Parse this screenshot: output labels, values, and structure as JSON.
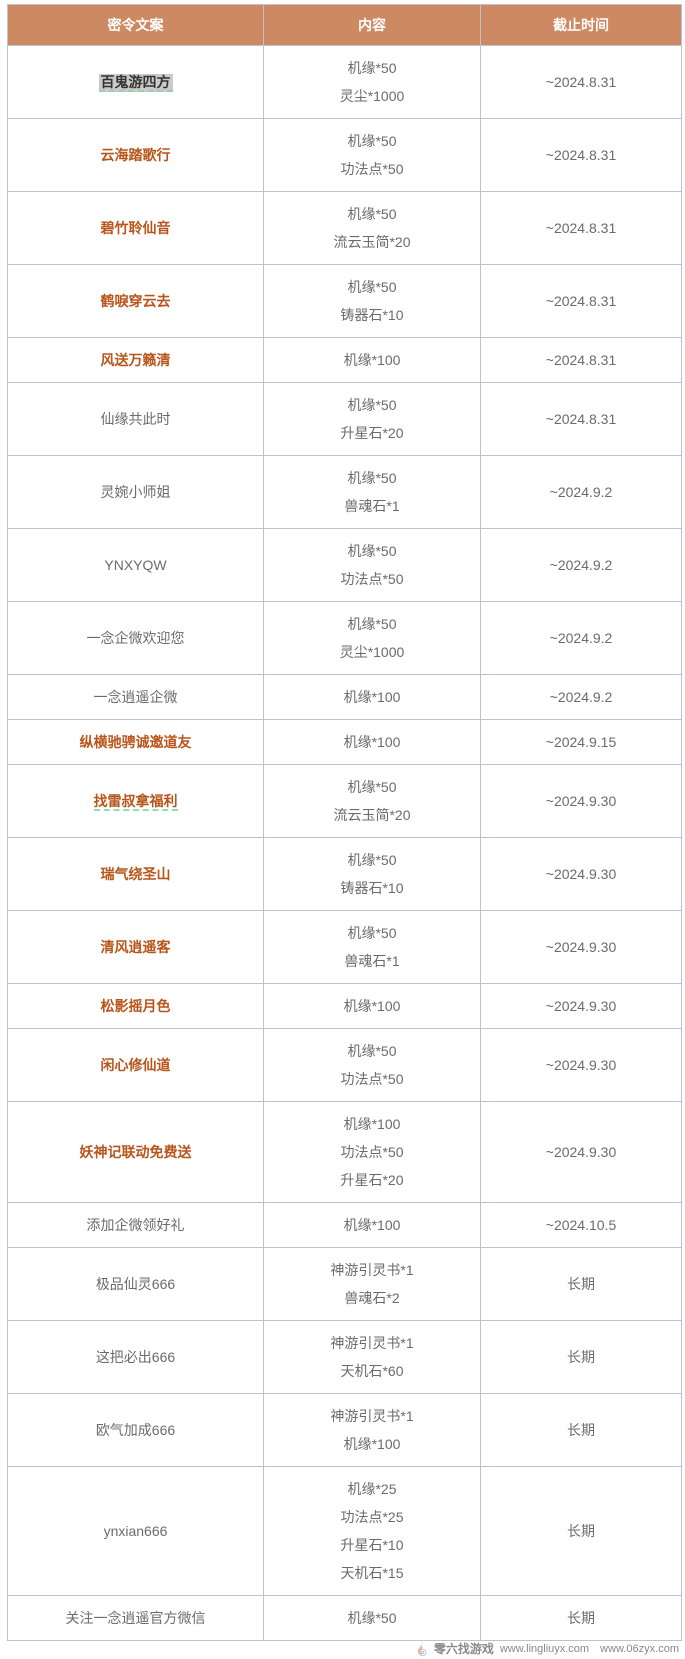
{
  "header": {
    "col1": "密令文案",
    "col2": "内容",
    "col3": "截止时间"
  },
  "rows": [
    {
      "code": "百鬼游四方",
      "style": "highlight",
      "rewards": [
        "机缘*50",
        "灵尘*1000"
      ],
      "deadline": "~2024.8.31"
    },
    {
      "code": "云海踏歌行",
      "style": "bold",
      "rewards": [
        "机缘*50",
        "功法点*50"
      ],
      "deadline": "~2024.8.31"
    },
    {
      "code": "碧竹聆仙音",
      "style": "bold",
      "rewards": [
        "机缘*50",
        "流云玉简*20"
      ],
      "deadline": "~2024.8.31"
    },
    {
      "code": "鹤唳穿云去",
      "style": "bold",
      "rewards": [
        "机缘*50",
        "铸器石*10"
      ],
      "deadline": "~2024.8.31"
    },
    {
      "code": "风送万籁清",
      "style": "bold",
      "rewards": [
        "机缘*100"
      ],
      "deadline": "~2024.8.31"
    },
    {
      "code": "仙缘共此时",
      "style": "normal",
      "rewards": [
        "机缘*50",
        "升星石*20"
      ],
      "deadline": "~2024.8.31"
    },
    {
      "code": "灵婉小师姐",
      "style": "normal",
      "rewards": [
        "机缘*50",
        "兽魂石*1"
      ],
      "deadline": "~2024.9.2"
    },
    {
      "code": "YNXYQW",
      "style": "normal",
      "rewards": [
        "机缘*50",
        "功法点*50"
      ],
      "deadline": "~2024.9.2"
    },
    {
      "code": "一念企微欢迎您",
      "style": "normal",
      "rewards": [
        "机缘*50",
        "灵尘*1000"
      ],
      "deadline": "~2024.9.2"
    },
    {
      "code": "一念逍遥企微",
      "style": "normal",
      "rewards": [
        "机缘*100"
      ],
      "deadline": "~2024.9.2"
    },
    {
      "code": "纵横驰骋诚邀道友",
      "style": "bold",
      "rewards": [
        "机缘*100"
      ],
      "deadline": "~2024.9.15"
    },
    {
      "code": "找雷叔拿福利",
      "style": "bold-underline",
      "rewards": [
        "机缘*50",
        "流云玉简*20"
      ],
      "deadline": "~2024.9.30"
    },
    {
      "code": "瑞气绕圣山",
      "style": "bold",
      "rewards": [
        "机缘*50",
        "铸器石*10"
      ],
      "deadline": "~2024.9.30"
    },
    {
      "code": "清风逍遥客",
      "style": "bold",
      "rewards": [
        "机缘*50",
        "兽魂石*1"
      ],
      "deadline": "~2024.9.30"
    },
    {
      "code": "松影摇月色",
      "style": "bold",
      "rewards": [
        "机缘*100"
      ],
      "deadline": "~2024.9.30"
    },
    {
      "code": "闲心修仙道",
      "style": "bold",
      "rewards": [
        "机缘*50",
        "功法点*50"
      ],
      "deadline": "~2024.9.30"
    },
    {
      "code": "妖神记联动免费送",
      "style": "bold",
      "rewards": [
        "机缘*100",
        "功法点*50",
        "升星石*20"
      ],
      "deadline": "~2024.9.30"
    },
    {
      "code": "添加企微领好礼",
      "style": "normal",
      "rewards": [
        "机缘*100"
      ],
      "deadline": "~2024.10.5"
    },
    {
      "code": "极品仙灵666",
      "style": "normal",
      "rewards": [
        "神游引灵书*1",
        "兽魂石*2"
      ],
      "deadline": "长期"
    },
    {
      "code": "这把必出666",
      "style": "normal",
      "rewards": [
        "神游引灵书*1",
        "天机石*60"
      ],
      "deadline": "长期"
    },
    {
      "code": "欧气加成666",
      "style": "normal",
      "rewards": [
        "神游引灵书*1",
        "机缘*100"
      ],
      "deadline": "长期"
    },
    {
      "code": "ynxian666",
      "style": "normal",
      "rewards": [
        "机缘*25",
        "功法点*25",
        "升星石*10",
        "天机石*15"
      ],
      "deadline": "长期"
    },
    {
      "code": "关注一念逍遥官方微信",
      "style": "normal",
      "rewards": [
        "机缘*50"
      ],
      "deadline": "长期"
    }
  ],
  "watermark": {
    "name": "零六找游戏",
    "urls": "www.lingliuyx.com www.06zyx.com"
  },
  "colors": {
    "header_bg": "#cd8961",
    "highlight_text": "#b8551b",
    "border": "#bfc1cd",
    "body_text": "#6b6b6b"
  }
}
